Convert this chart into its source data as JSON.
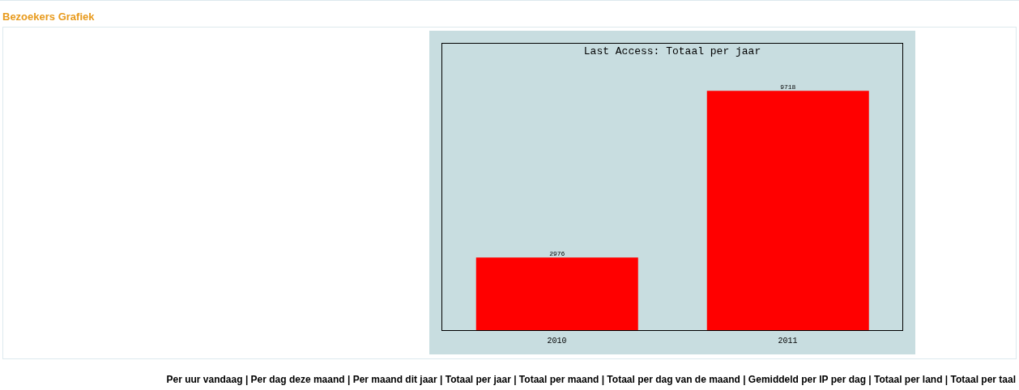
{
  "chart_data": {
    "type": "bar",
    "title": "Last Access: Totaal per jaar",
    "subtitle": "Bezoekers Grafiek",
    "categories": [
      "2010",
      "2011"
    ],
    "values": [
      2976,
      9718
    ],
    "color": "#ff0000",
    "data_labels": true,
    "annotations": [
      "Per uur vandaag | Per dag deze maand | Per maand dit jaar | Totaal per jaar | Totaal per maand | Totaal per dag van de maand | Gemiddeld per IP per dag | Totaal per land | Totaal per taal"
    ]
  }
}
